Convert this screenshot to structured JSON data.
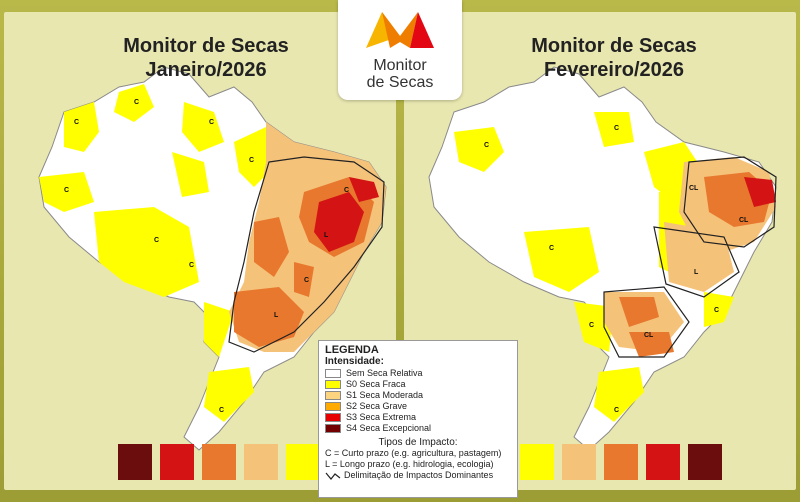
{
  "logo": {
    "line1": "Monitor",
    "line2": "de Secas",
    "colors": [
      "#f7b500",
      "#ef7d00",
      "#e30613"
    ]
  },
  "maps": [
    {
      "title_line1": "Monitor de Secas",
      "title_line2": "Janeiro/2026",
      "labels": [
        "C",
        "C",
        "C",
        "C",
        "C",
        "C",
        "C",
        "L",
        "L",
        "C",
        "C",
        "C"
      ]
    },
    {
      "title_line1": "Monitor de Secas",
      "title_line2": "Fevereiro/2026",
      "labels": [
        "C",
        "C",
        "CL",
        "CL",
        "C",
        "L",
        "C",
        "CL",
        "C",
        "C"
      ]
    }
  ],
  "legend": {
    "title": "LEGENDA",
    "intensity_title": "Intensidade:",
    "items": [
      {
        "label": "Sem Seca Relativa",
        "color": "#ffffff"
      },
      {
        "label": "S0 Seca Fraca",
        "color": "#ffff00"
      },
      {
        "label": "S1 Seca Moderada",
        "color": "#fcd37f"
      },
      {
        "label": "S2 Seca Grave",
        "color": "#ffaa00"
      },
      {
        "label": "S3 Seca Extrema",
        "color": "#e60000"
      },
      {
        "label": "S4 Seca Excepcional",
        "color": "#730000"
      }
    ],
    "impact_title": "Tipos de Impacto:",
    "impact_c": "C = Curto prazo (e.g. agricultura, pastagem)",
    "impact_l": "L = Longo prazo (e.g. hidrologia, ecologia)",
    "delimitation": "Delimitação de Impactos Dominantes"
  },
  "colors": {
    "none": "#ffffff",
    "s0": "#ffff00",
    "s1": "#f5c27a",
    "s2": "#e8782e",
    "s3": "#d41414",
    "s4": "#6b0d0d",
    "border": "#8a8a8a"
  }
}
